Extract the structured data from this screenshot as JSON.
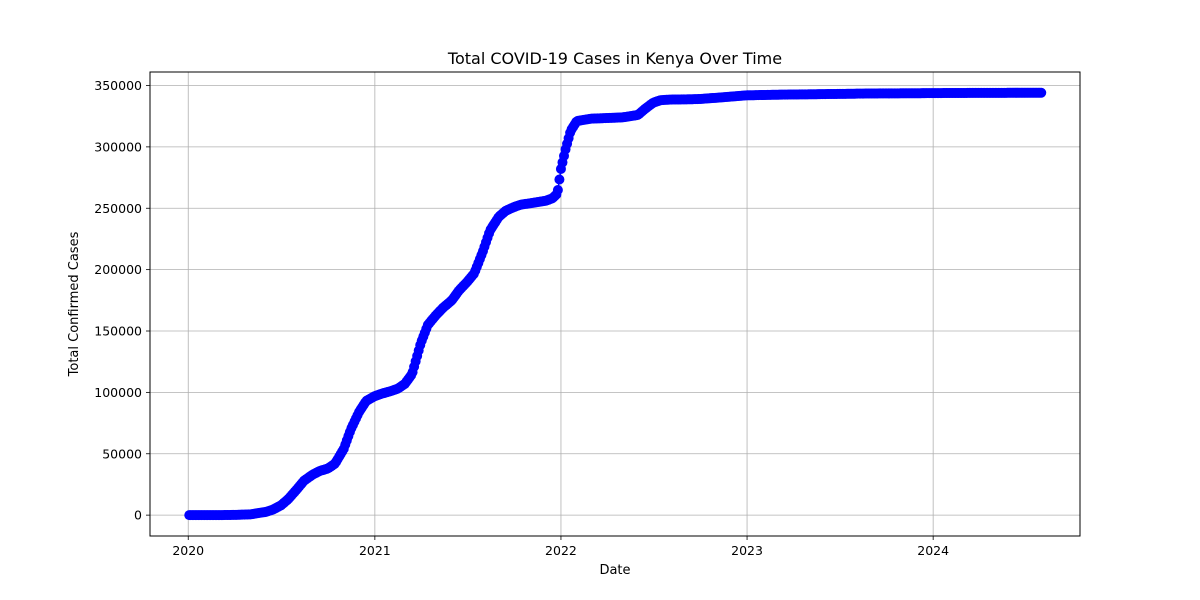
{
  "chart_data": {
    "type": "line",
    "title": "Total COVID-19 Cases in Kenya Over Time",
    "xlabel": "Date",
    "ylabel": "Total Confirmed Cases",
    "xlim": [
      "2019-10-18",
      "2024-10-15"
    ],
    "ylim": [
      -17000,
      361000
    ],
    "x_ticks": [
      "2020",
      "2021",
      "2022",
      "2023",
      "2024"
    ],
    "x_tick_dates": [
      "2020-01-01",
      "2021-01-01",
      "2022-01-01",
      "2023-01-01",
      "2024-01-01"
    ],
    "y_ticks": [
      0,
      50000,
      100000,
      150000,
      200000,
      250000,
      300000,
      350000
    ],
    "grid": true,
    "series": [
      {
        "color": "#0000ff",
        "marker": "circle",
        "x": [
          "2020-01-03",
          "2020-02-01",
          "2020-03-01",
          "2020-04-01",
          "2020-05-01",
          "2020-06-01",
          "2020-06-15",
          "2020-07-01",
          "2020-07-15",
          "2020-08-01",
          "2020-08-15",
          "2020-09-01",
          "2020-09-15",
          "2020-10-01",
          "2020-10-15",
          "2020-11-01",
          "2020-11-15",
          "2020-12-01",
          "2020-12-15",
          "2021-01-01",
          "2021-01-15",
          "2021-02-01",
          "2021-02-15",
          "2021-03-01",
          "2021-03-15",
          "2021-04-01",
          "2021-04-15",
          "2021-05-01",
          "2021-05-15",
          "2021-06-01",
          "2021-06-15",
          "2021-07-01",
          "2021-07-15",
          "2021-08-01",
          "2021-08-15",
          "2021-09-01",
          "2021-09-15",
          "2021-10-01",
          "2021-10-15",
          "2021-11-01",
          "2021-11-15",
          "2021-12-01",
          "2021-12-15",
          "2021-12-25",
          "2022-01-01",
          "2022-01-10",
          "2022-01-20",
          "2022-02-01",
          "2022-03-01",
          "2022-04-01",
          "2022-05-01",
          "2022-06-01",
          "2022-06-15",
          "2022-07-01",
          "2022-07-15",
          "2022-08-01",
          "2022-09-01",
          "2022-10-01",
          "2022-11-01",
          "2022-12-01",
          "2023-01-01",
          "2023-03-01",
          "2023-06-01",
          "2023-09-01",
          "2024-01-01",
          "2024-04-01",
          "2024-08-01"
        ],
        "y": [
          0,
          0,
          1,
          200,
          600,
          2600,
          4500,
          8000,
          13000,
          21000,
          28000,
          33000,
          36000,
          38000,
          42000,
          54000,
          70000,
          84000,
          93000,
          97000,
          99000,
          101000,
          103000,
          107000,
          115000,
          140000,
          155000,
          163000,
          169000,
          175000,
          183000,
          190000,
          197000,
          215000,
          232000,
          243000,
          248000,
          251000,
          253000,
          254000,
          255000,
          256000,
          258000,
          262000,
          282000,
          298000,
          313000,
          321000,
          323000,
          323500,
          324000,
          326000,
          331000,
          336000,
          338000,
          338500,
          338700,
          339000,
          340000,
          341000,
          342000,
          342500,
          343000,
          343500,
          343800,
          344000,
          344100
        ]
      }
    ]
  }
}
